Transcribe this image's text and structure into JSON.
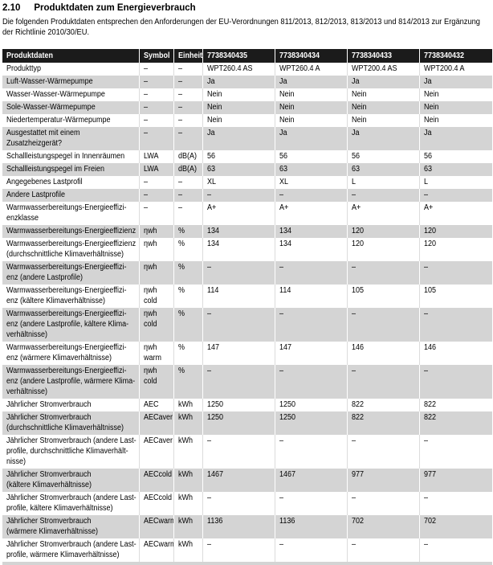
{
  "page": {
    "section_number": "2.10",
    "title": "Produktdaten zum Energieverbrauch",
    "intro": "Die folgenden Produktdaten entsprechen den Anforderungen der EU-Verordnungen 811/2013, 812/2013, 813/2013 und 814/2013 zur Ergänzung\nder Richtlinie 2010/30/EU."
  },
  "colors": {
    "header_bg": "#1b1b1b",
    "header_text": "#ffffff",
    "row_shaded_bg": "#d4d4d4",
    "divider_light": "#dcdcdc",
    "divider_white": "#ffffff",
    "text": "#000000"
  },
  "table": {
    "columns": [
      "Produktdaten",
      "Symbol",
      "Einheit",
      "7738340435",
      "7738340434",
      "7738340433",
      "7738340432"
    ],
    "rows": [
      {
        "shaded": false,
        "cells": [
          "Produkttyp",
          "–",
          "–",
          "WPT260.4 AS",
          "WPT260.4 A",
          "WPT200.4 AS",
          "WPT200.4 A"
        ]
      },
      {
        "shaded": true,
        "cells": [
          "Luft-Wasser-Wärmepumpe",
          "–",
          "–",
          "Ja",
          "Ja",
          "Ja",
          "Ja"
        ]
      },
      {
        "shaded": false,
        "cells": [
          "Wasser-Wasser-Wärmepumpe",
          "–",
          "–",
          "Nein",
          "Nein",
          "Nein",
          "Nein"
        ]
      },
      {
        "shaded": true,
        "cells": [
          "Sole-Wasser-Wärmepumpe",
          "–",
          "–",
          "Nein",
          "Nein",
          "Nein",
          "Nein"
        ]
      },
      {
        "shaded": false,
        "cells": [
          "Niedertemperatur-Wärmepumpe",
          "–",
          "–",
          "Nein",
          "Nein",
          "Nein",
          "Nein"
        ]
      },
      {
        "shaded": true,
        "cells": [
          "Ausgestattet mit einem Zusatzheizgerät?",
          "–",
          "–",
          "Ja",
          "Ja",
          "Ja",
          "Ja"
        ]
      },
      {
        "shaded": false,
        "cells": [
          "Schallleistungspegel in Innenräumen",
          "LWA",
          "dB(A)",
          "56",
          "56",
          "56",
          "56"
        ]
      },
      {
        "shaded": true,
        "cells": [
          "Schallleistungspegel im Freien",
          "LWA",
          "dB(A)",
          "63",
          "63",
          "63",
          "63"
        ]
      },
      {
        "shaded": false,
        "cells": [
          "Angegebenes Lastprofil",
          "–",
          "–",
          "XL",
          "XL",
          "L",
          "L"
        ]
      },
      {
        "shaded": true,
        "cells": [
          "Andere Lastprofile",
          "–",
          "–",
          "–",
          "–",
          "–",
          "–"
        ]
      },
      {
        "shaded": false,
        "cells": [
          "Warmwasserbereitungs-Energieeffizi-\nenzklasse",
          "–",
          "–",
          "A+",
          "A+",
          "A+",
          "A+"
        ]
      },
      {
        "shaded": true,
        "cells": [
          "Warmwasserbereitungs-Energieeffizienz",
          "ηwh",
          "%",
          "134",
          "134",
          "120",
          "120"
        ]
      },
      {
        "shaded": false,
        "cells": [
          "Warmwasserbereitungs-Energieeffizienz\n(durchschnittliche Klimaverhältnisse)",
          "ηwh",
          "%",
          "134",
          "134",
          "120",
          "120"
        ]
      },
      {
        "shaded": true,
        "cells": [
          "Warmwasserbereitungs-Energieeffizi-\nenz (andere Lastprofile)",
          "ηwh",
          "%",
          "–",
          "–",
          "–",
          "–"
        ]
      },
      {
        "shaded": false,
        "cells": [
          "Warmwasserbereitungs-Energieeffizi-\nenz (kältere Klimaverhältnisse)",
          "ηwh cold",
          "%",
          "114",
          "114",
          "105",
          "105"
        ]
      },
      {
        "shaded": true,
        "cells": [
          "Warmwasserbereitungs-Energieeffizi-\nenz (andere Lastprofile, kältere Klima-\nverhältnisse)",
          "ηwh cold",
          "%",
          "–",
          "–",
          "–",
          "–"
        ]
      },
      {
        "shaded": false,
        "cells": [
          "Warmwasserbereitungs-Energieeffizi-\nenz (wärmere Klimaverhältnisse)",
          "ηwh warm",
          "%",
          "147",
          "147",
          "146",
          "146"
        ]
      },
      {
        "shaded": true,
        "cells": [
          "Warmwasserbereitungs-Energieeffizi-\nenz (andere Lastprofile, wärmere Klima-\nverhältnisse)",
          "ηwh cold",
          "%",
          "–",
          "–",
          "–",
          "–"
        ]
      },
      {
        "shaded": false,
        "cells": [
          "Jährlicher Stromverbrauch",
          "AEC",
          "kWh",
          "1250",
          "1250",
          "822",
          "822"
        ]
      },
      {
        "shaded": true,
        "cells": [
          "Jährlicher Stromverbrauch\n(durchschnittliche Klimaverhältnisse)",
          "AECaver",
          "kWh",
          "1250",
          "1250",
          "822",
          "822"
        ]
      },
      {
        "shaded": false,
        "cells": [
          "Jährlicher Stromverbrauch (andere Last-\nprofile, durchschnittliche Klimaverhält-\nnisse)",
          "AECaver",
          "kWh",
          "–",
          "–",
          "–",
          "–"
        ]
      },
      {
        "shaded": true,
        "cells": [
          "Jährlicher Stromverbrauch\n(kältere Klimaverhältnisse)",
          "AECcold",
          "kWh",
          "1467",
          "1467",
          "977",
          "977"
        ]
      },
      {
        "shaded": false,
        "cells": [
          "Jährlicher Stromverbrauch (andere Last-\nprofile, kältere Klimaverhältnisse)",
          "AECcold",
          "kWh",
          "–",
          "–",
          "–",
          "–"
        ]
      },
      {
        "shaded": true,
        "cells": [
          "Jährlicher Stromverbrauch\n(wärmere Klimaverhältnisse)",
          "AECwarm",
          "kWh",
          "1136",
          "1136",
          "702",
          "702"
        ]
      },
      {
        "shaded": false,
        "cells": [
          "Jährlicher Stromverbrauch (andere Last-\nprofile, wärmere Klimaverhältnisse)",
          "AECwarm",
          "kWh",
          "–",
          "–",
          "–",
          "–"
        ]
      }
    ]
  }
}
